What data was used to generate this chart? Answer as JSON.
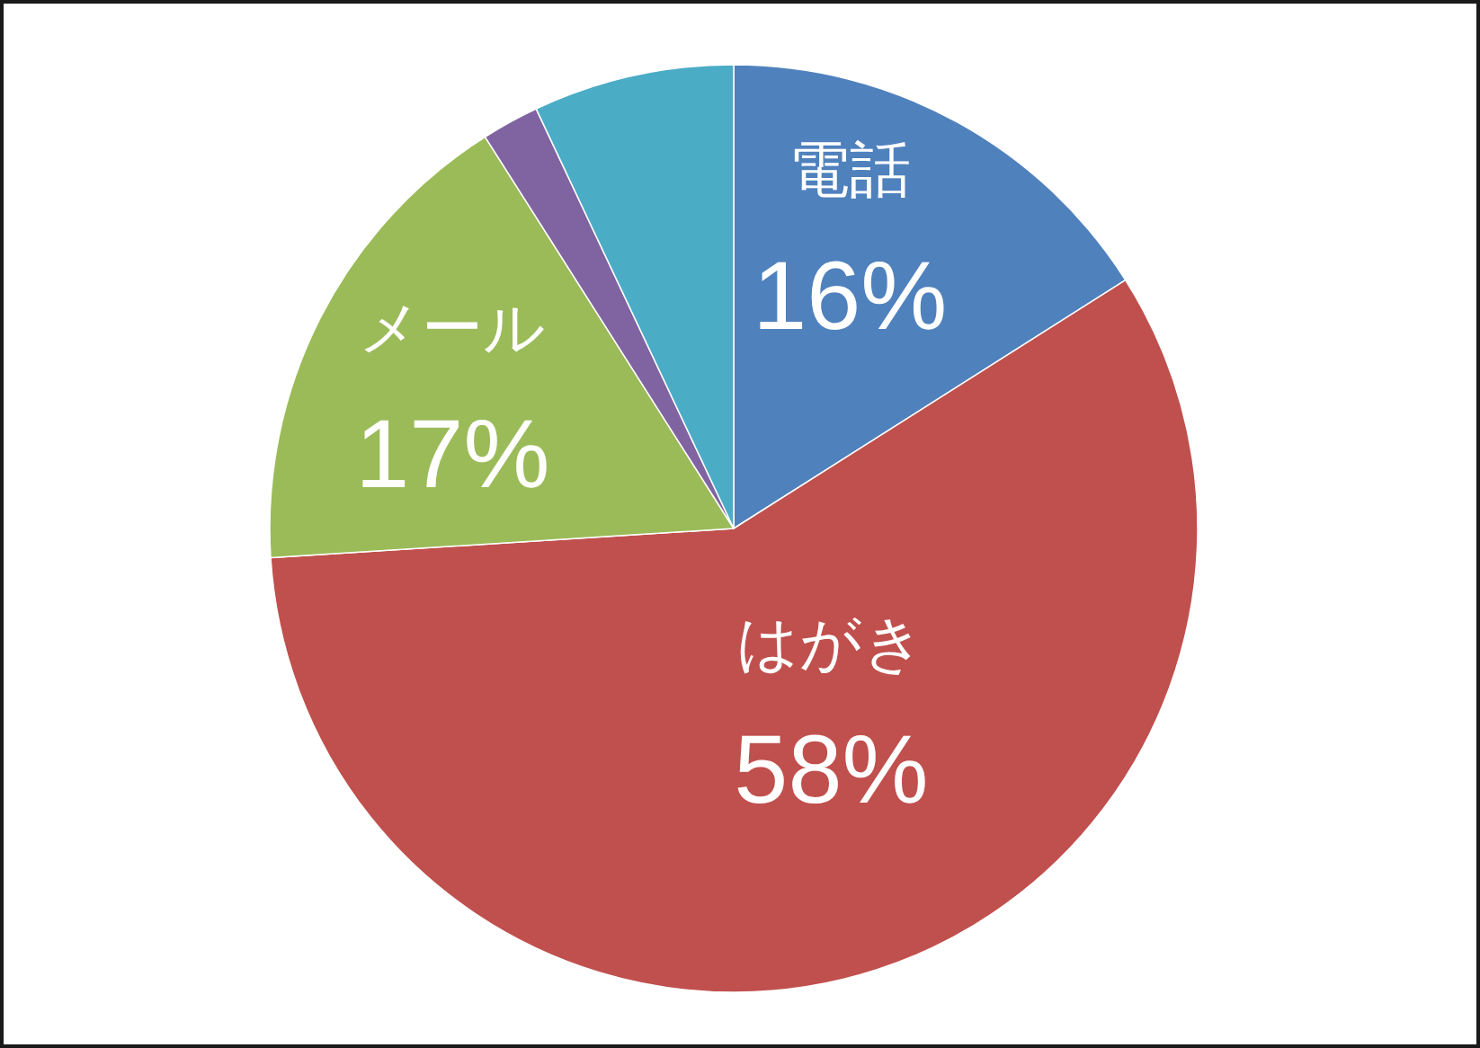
{
  "chart_data": {
    "type": "pie",
    "categories": [
      "電話",
      "はがき",
      "メール",
      null,
      null
    ],
    "values": [
      16,
      58,
      17,
      2,
      7
    ],
    "colors": [
      "#4f81bd",
      "#c0504d",
      "#9bbb59",
      "#8064a2",
      "#4bacc6"
    ],
    "value_labels": [
      "16%",
      "58%",
      "17%",
      null,
      null
    ]
  }
}
